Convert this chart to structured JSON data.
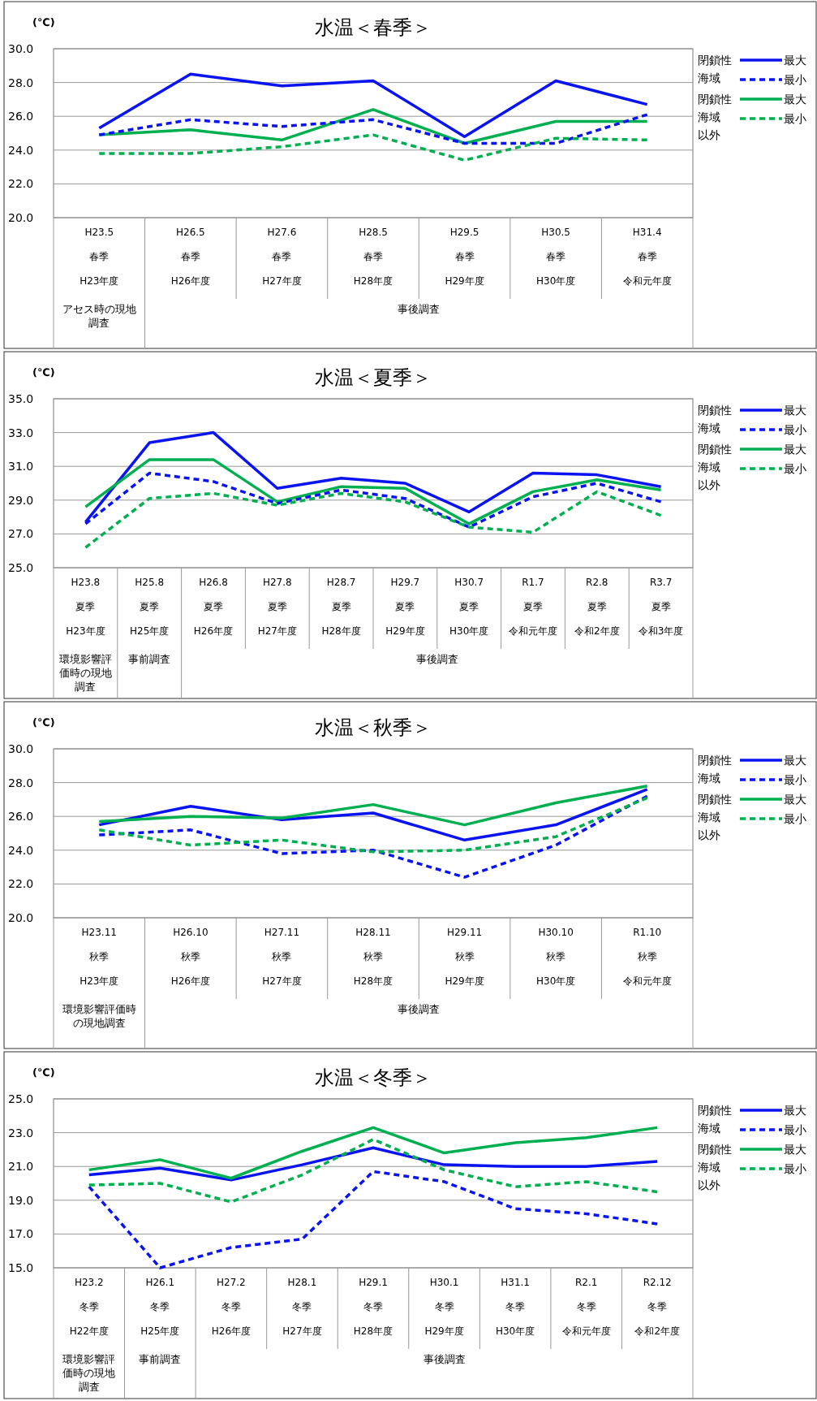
{
  "chart_data": [
    {
      "type": "line",
      "title": "水温＜春季＞",
      "ylabel": "(℃)",
      "categories": [
        "H23.5\n春季\nH23年度",
        "H26.5\n春季\nH26年度",
        "H27.6\n春季\nH27年度",
        "H28.5\n春季\nH28年度",
        "H29.5\n春季\nH29年度",
        "H30.5\n春季\nH30年度",
        "H31.4\n春季令和元年度"
      ],
      "ylim": [
        20,
        30
      ],
      "yticks": [
        {
          "value": 20,
          "label": "20.0"
        },
        {
          "value": 22,
          "label": "22.0"
        },
        {
          "value": 24,
          "label": "24.0"
        },
        {
          "value": 26,
          "label": "26.0"
        },
        {
          "value": 28,
          "label": "28.0"
        },
        {
          "value": 30,
          "label": "30.0"
        }
      ],
      "grid": "y",
      "legend": "right",
      "marker": "none",
      "annotations": [
        "閉鎖性海域",
        "閉鎖性海域以外",
        "アセス時の現地調査",
        "事後調査"
      ],
      "series": [
        {
          "name": "最大",
          "color": "#0a14f0",
          "line_style": "solid",
          "values": [
            25.3,
            28.5,
            27.8,
            28.1,
            24.8,
            28.1,
            26.7
          ]
        },
        {
          "name": "最小",
          "color": "#0a14f0",
          "line_style": "dashed",
          "values": [
            24.9,
            25.8,
            25.4,
            25.8,
            24.4,
            24.4,
            26.1
          ]
        },
        {
          "name": "最大",
          "color": "#00b050",
          "line_style": "solid",
          "values": [
            24.9,
            25.2,
            24.6,
            26.4,
            24.4,
            25.7,
            25.7
          ]
        },
        {
          "name": "最小",
          "color": "#00b050",
          "line_style": "dashed",
          "values": [
            23.8,
            23.8,
            24.2,
            24.9,
            23.4,
            24.7,
            24.6
          ]
        }
      ]
    },
    {
      "type": "line",
      "title": "水温＜夏季＞",
      "ylabel": "(℃)",
      "categories": [
        "H23.8\n夏季\nH23年度",
        "H25.8\n夏季\nH25年度",
        "H26.8\n夏季\nH26年度",
        "H27.8\n夏季\nH27年度",
        "H28.7\n夏季\nH28年度",
        "H29.7\n夏季\nH29年度",
        "H30.7\n夏季\nH30年度",
        "R1.7\n夏季令和元年度",
        "R2.8\n夏季令和2年度",
        "R3.7\n夏季令和3年度"
      ],
      "ylim": [
        25,
        35
      ],
      "yticks": [
        {
          "value": 25,
          "label": "25.0"
        },
        {
          "value": 27,
          "label": "27.0"
        },
        {
          "value": 29,
          "label": "29.0"
        },
        {
          "value": 31,
          "label": "31.0"
        },
        {
          "value": 33,
          "label": "33.0"
        },
        {
          "value": 35,
          "label": "35.0"
        }
      ],
      "grid": "y",
      "legend": "right",
      "marker": "none",
      "annotations": [
        "閉鎖性海域",
        "閉鎖性海域以外",
        "環境影響評価時の現地調査",
        "事前調査",
        "事後調査"
      ],
      "series": [
        {
          "name": "最大",
          "color": "#0a14f0",
          "line_style": "solid",
          "values": [
            27.7,
            32.4,
            33.0,
            29.7,
            30.3,
            30.0,
            28.3,
            30.6,
            30.5,
            29.8
          ]
        },
        {
          "name": "最小",
          "color": "#0a14f0",
          "line_style": "dashed",
          "values": [
            27.6,
            30.6,
            30.1,
            28.8,
            29.6,
            29.1,
            27.4,
            29.2,
            30.0,
            28.9
          ]
        },
        {
          "name": "最大",
          "color": "#00b050",
          "line_style": "solid",
          "values": [
            28.6,
            31.4,
            31.4,
            28.9,
            29.8,
            29.7,
            27.6,
            29.5,
            30.2,
            29.6
          ]
        },
        {
          "name": "最小",
          "color": "#00b050",
          "line_style": "dashed",
          "values": [
            26.2,
            29.1,
            29.4,
            28.7,
            29.4,
            28.9,
            27.4,
            27.1,
            29.5,
            28.1
          ]
        }
      ]
    },
    {
      "type": "line",
      "title": "水温＜秋季＞",
      "ylabel": "(℃)",
      "categories": [
        "H23.11\n秋季\nH23年度",
        "H26.10\n秋季\nH26年度",
        "H27.11\n秋季\nH27年度",
        "H28.11\n秋季\nH28年度",
        "H29.11\n秋季\nH29年度",
        "H30.10\n秋季\nH30年度",
        "R1.10\n秋季令和元年度"
      ],
      "ylim": [
        20,
        30
      ],
      "yticks": [
        {
          "value": 20,
          "label": "20.0"
        },
        {
          "value": 22,
          "label": "22.0"
        },
        {
          "value": 24,
          "label": "24.0"
        },
        {
          "value": 26,
          "label": "26.0"
        },
        {
          "value": 28,
          "label": "28.0"
        },
        {
          "value": 30,
          "label": "30.0"
        }
      ],
      "grid": "y",
      "legend": "right",
      "marker": "none",
      "annotations": [
        "閉鎖性海域",
        "閉鎖性海域以外",
        "環境影響評価時の現地調査",
        "事後調査"
      ],
      "series": [
        {
          "name": "最大",
          "color": "#0a14f0",
          "line_style": "solid",
          "values": [
            25.5,
            26.6,
            25.8,
            26.2,
            24.6,
            25.5,
            27.6
          ]
        },
        {
          "name": "最小",
          "color": "#0a14f0",
          "line_style": "dashed",
          "values": [
            24.9,
            25.2,
            23.8,
            24.0,
            22.4,
            24.3,
            27.2
          ]
        },
        {
          "name": "最大",
          "color": "#00b050",
          "line_style": "solid",
          "values": [
            25.7,
            26.0,
            25.9,
            26.7,
            25.5,
            26.8,
            27.8
          ]
        },
        {
          "name": "最小",
          "color": "#00b050",
          "line_style": "dashed",
          "values": [
            25.2,
            24.3,
            24.6,
            23.9,
            24.0,
            24.8,
            27.1
          ]
        }
      ]
    },
    {
      "type": "line",
      "title": "水温＜冬季＞",
      "ylabel": "(℃)",
      "categories": [
        "H23.2\n冬季\nH22年度",
        "H26.1\n冬季\nH25年度",
        "H27.2\n冬季\nH26年度",
        "H28.1\n冬季\nH27年度",
        "H29.1\n冬季\nH28年度",
        "H30.1\n冬季\nH29年度",
        "H31.1\n冬季\nH30年度",
        "R2.1\n冬季令和元年度",
        "R2.12\n冬季令和2年度"
      ],
      "ylim": [
        15,
        25
      ],
      "yticks": [
        {
          "value": 15,
          "label": "15.0"
        },
        {
          "value": 17,
          "label": "17.0"
        },
        {
          "value": 19,
          "label": "19.0"
        },
        {
          "value": 21,
          "label": "21.0"
        },
        {
          "value": 23,
          "label": "23.0"
        },
        {
          "value": 25,
          "label": "25.0"
        }
      ],
      "grid": "y",
      "legend": "right",
      "marker": "none",
      "annotations": [
        "閉鎖性海域",
        "閉鎖性海域以外",
        "環境影響評価時の現地調査",
        "事前調査",
        "事後調査"
      ],
      "series": [
        {
          "name": "最大",
          "color": "#0a14f0",
          "line_style": "solid",
          "values": [
            20.5,
            20.9,
            20.2,
            21.1,
            22.1,
            21.1,
            21.0,
            21.0,
            21.3
          ]
        },
        {
          "name": "最小",
          "color": "#0a14f0",
          "line_style": "dashed",
          "values": [
            19.8,
            15.0,
            16.2,
            16.7,
            20.7,
            20.1,
            18.5,
            18.2,
            17.6
          ]
        },
        {
          "name": "最大",
          "color": "#00b050",
          "line_style": "solid",
          "values": [
            20.8,
            21.4,
            20.3,
            21.9,
            23.3,
            21.8,
            22.4,
            22.7,
            23.3
          ]
        },
        {
          "name": "最小",
          "color": "#00b050",
          "line_style": "dashed",
          "values": [
            19.9,
            20.0,
            18.9,
            20.5,
            22.6,
            20.8,
            19.8,
            20.1,
            19.5
          ]
        }
      ]
    }
  ]
}
